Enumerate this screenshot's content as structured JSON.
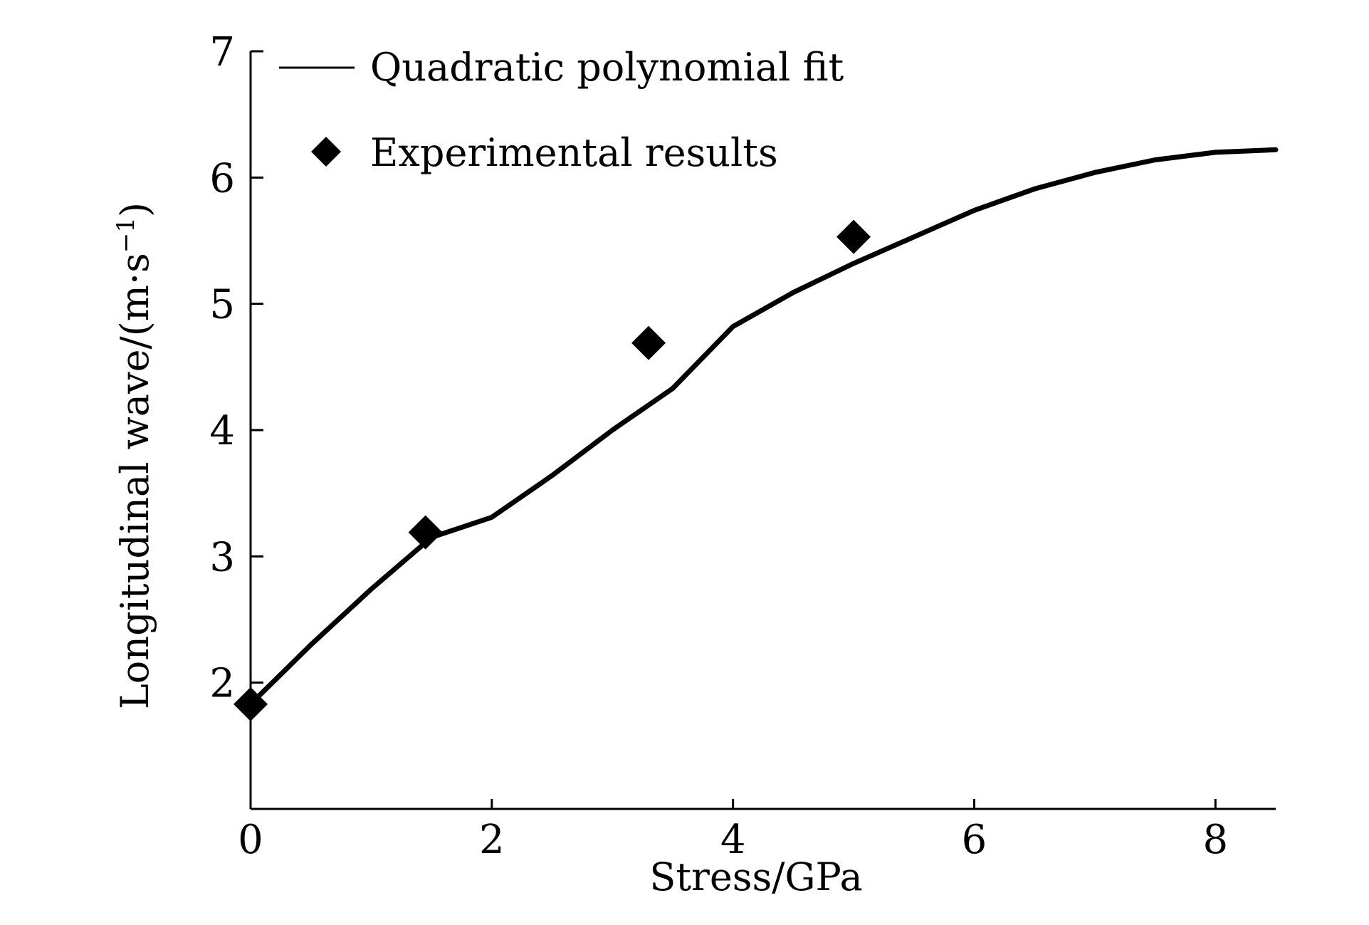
{
  "chart_data": {
    "type": "line",
    "xlabel": "Stress/GPa",
    "ylabel": "Longitudinal wave/(m·s",
    "ylabel_sup": "−1",
    "ylabel_close": ")",
    "xlim": [
      0,
      8.5
    ],
    "ylim": [
      1,
      7
    ],
    "xticks": [
      0,
      2,
      4,
      6,
      8
    ],
    "yticks": [
      2,
      3,
      4,
      5,
      6,
      7
    ],
    "grid": false,
    "legend_position": "top-left",
    "series": [
      {
        "name": "Quadratic polynomial fit",
        "style": "line",
        "color": "#000000",
        "x": [
          0,
          0.5,
          1,
          1.5,
          2,
          2.5,
          3,
          3.5,
          4,
          4.5,
          5,
          5.5,
          6,
          6.5,
          7,
          7.5,
          8,
          8.5
        ],
        "y": [
          1.83,
          2.3,
          2.74,
          3.15,
          3.31,
          3.64,
          4.0,
          4.33,
          4.82,
          5.09,
          5.32,
          5.53,
          5.74,
          5.91,
          6.04,
          6.14,
          6.2,
          6.22
        ]
      },
      {
        "name": "Experimental results",
        "style": "marker",
        "marker": "diamond",
        "color": "#000000",
        "x": [
          0,
          1.45,
          3.3,
          5.0
        ],
        "y": [
          1.83,
          3.19,
          4.69,
          5.53
        ]
      }
    ]
  }
}
